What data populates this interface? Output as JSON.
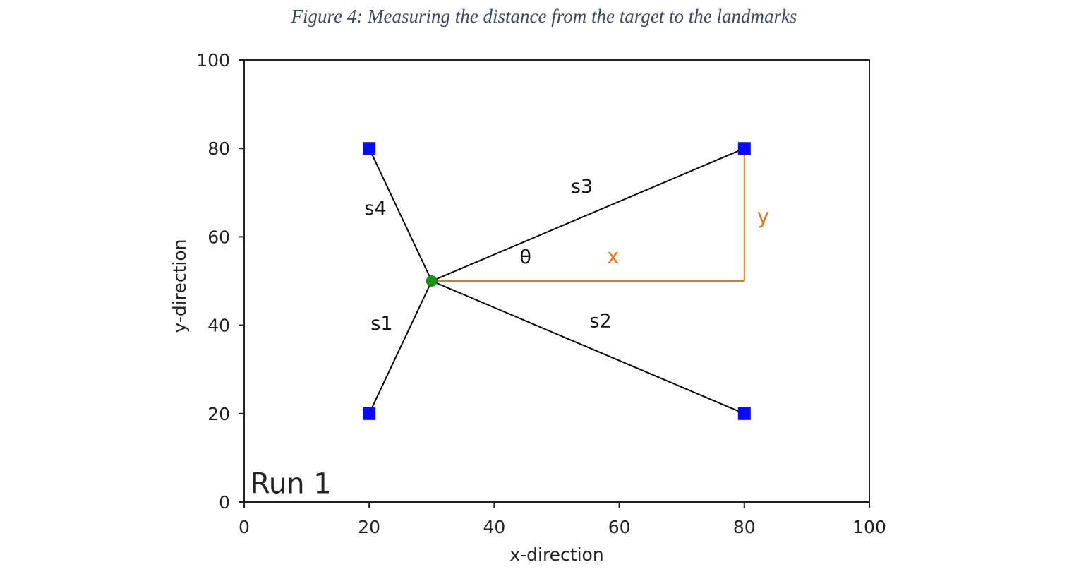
{
  "caption": "Figure 4: Measuring the distance from the target to the landmarks",
  "chart_data": {
    "type": "scatter",
    "xlabel": "x-direction",
    "ylabel": "y-direction",
    "xlim": [
      0,
      100
    ],
    "ylim": [
      0,
      100
    ],
    "xticks": [
      0,
      20,
      40,
      60,
      80,
      100
    ],
    "yticks": [
      0,
      20,
      40,
      60,
      80,
      100
    ],
    "grid": false,
    "landmarks": {
      "color": "#0a0aff",
      "points": [
        {
          "x": 20,
          "y": 20
        },
        {
          "x": 80,
          "y": 20
        },
        {
          "x": 80,
          "y": 80
        },
        {
          "x": 20,
          "y": 80
        }
      ]
    },
    "target": {
      "x": 30,
      "y": 50,
      "color": "#1a8f1a"
    },
    "segments": [
      {
        "label": "s1",
        "to": 0,
        "label_at": {
          "x": 22,
          "y": 39
        }
      },
      {
        "label": "s2",
        "to": 1,
        "label_at": {
          "x": 57,
          "y": 39.5
        }
      },
      {
        "label": "s3",
        "to": 2,
        "label_at": {
          "x": 54,
          "y": 70
        }
      },
      {
        "label": "s4",
        "to": 3,
        "label_at": {
          "x": 21,
          "y": 65
        }
      }
    ],
    "annotations": {
      "color": "#e4741f",
      "x_label": "x",
      "y_label": "y",
      "theta_label": "θ",
      "x_label_at": {
        "x": 59,
        "y": 54
      },
      "y_label_at": {
        "x": 83,
        "y": 63
      },
      "theta_label_at": {
        "x": 45,
        "y": 54
      }
    },
    "run_text": "Run 1",
    "run_text_at": {
      "x": 1,
      "y": 2
    }
  }
}
